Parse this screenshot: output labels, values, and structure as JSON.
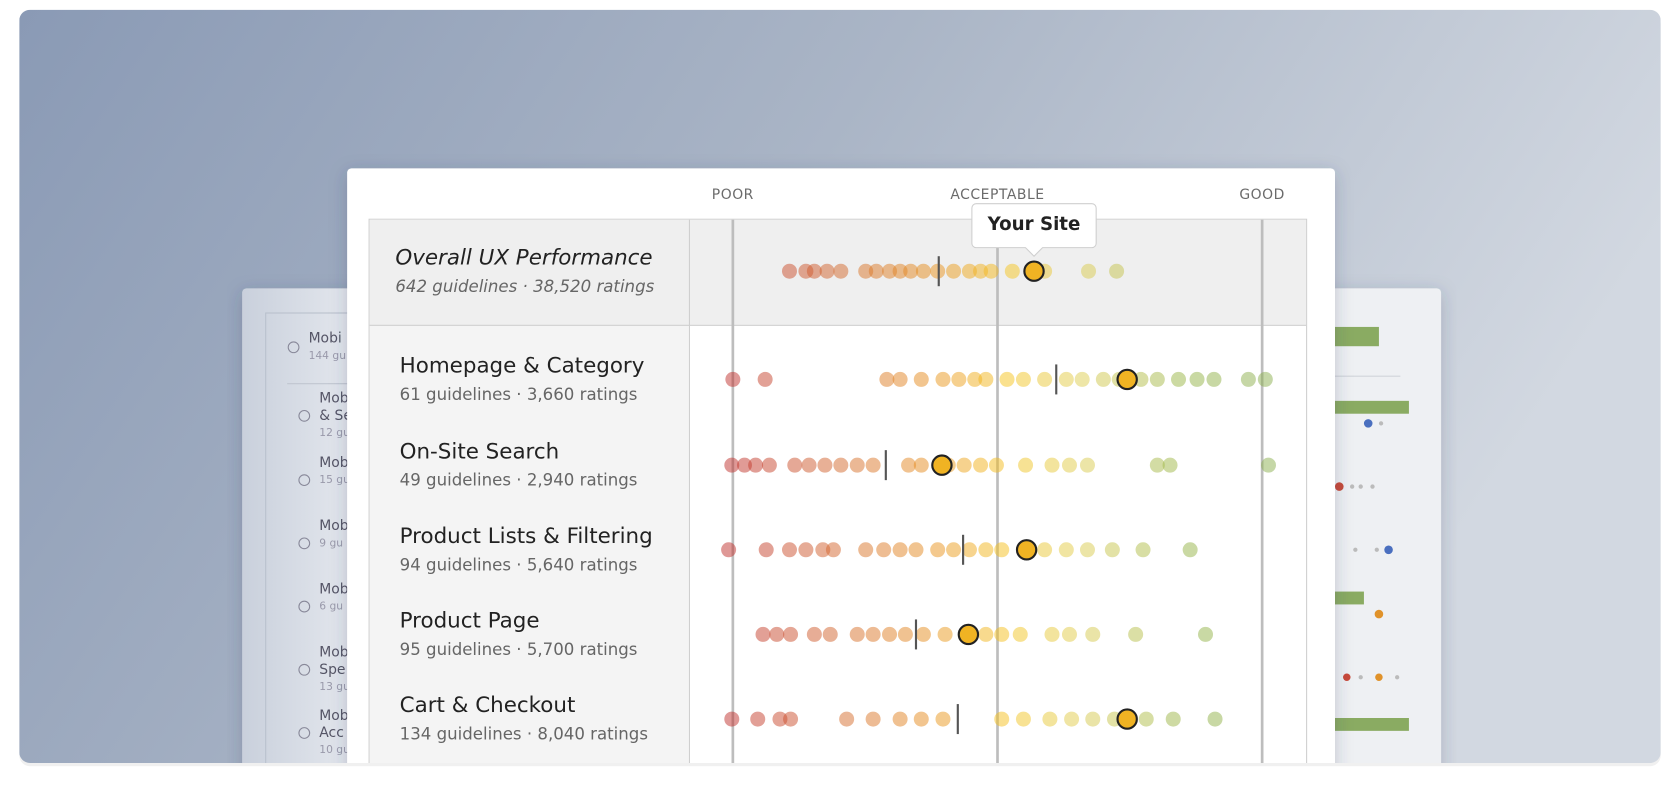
{
  "chart_data": {
    "type": "strip",
    "xlim": [
      0,
      100
    ],
    "xticks": [
      {
        "value": 0,
        "label": "POOR"
      },
      {
        "value": 50,
        "label": "ACCEPTABLE"
      },
      {
        "value": 100,
        "label": "GOOD"
      }
    ],
    "annotation": "Your Site",
    "overall": {
      "title": "Overall UX Performance",
      "subtitle": "642 guidelines · 38,520 ratings",
      "values": [
        10.7,
        13.8,
        15.4,
        17.8,
        20.4,
        25.1,
        27.1,
        29.6,
        31.6,
        33.6,
        36.0,
        38.7,
        41.7,
        44.7,
        46.8,
        48.8,
        52.8,
        58.9,
        67.2,
        72.5
      ],
      "median": 38.9,
      "your_site": 56.9
    },
    "rows": [
      {
        "title": "Homepage & Category",
        "subtitle": "61 guidelines · 3,660 ratings",
        "values": [
          0,
          6.1,
          29.1,
          31.6,
          35.6,
          39.7,
          42.7,
          45.7,
          47.8,
          51.8,
          54.9,
          58.9,
          63,
          66,
          70,
          73,
          77.1,
          80.2,
          84.2,
          87.7,
          90.9,
          97.4,
          100.6
        ],
        "median": 61.1,
        "your_site": 74.5
      },
      {
        "title": "On-Site Search",
        "subtitle": "49 guidelines · 2,940 ratings",
        "values": [
          -0.2,
          2.2,
          4.3,
          6.9,
          11.7,
          14.4,
          17.4,
          20.4,
          23.5,
          26.5,
          33.2,
          35.6,
          40.7,
          43.7,
          46.8,
          49.8,
          55.3,
          60.3,
          63.6,
          67,
          80.2,
          82.6,
          101.2
        ],
        "median": 28.9,
        "your_site": 39.5
      },
      {
        "title": "Product Lists & Filtering",
        "subtitle": "94 guidelines · 5,640 ratings",
        "values": [
          -0.8,
          6.3,
          10.7,
          13.8,
          17,
          19,
          25.1,
          28.5,
          31.6,
          34.6,
          38.7,
          41.7,
          44.7,
          47.8,
          50.8,
          58.9,
          63,
          67,
          71.7,
          77.5,
          86.4
        ],
        "median": 43.5,
        "your_site": 55.5
      },
      {
        "title": "Product Page",
        "subtitle": "95 guidelines · 5,700 ratings",
        "values": [
          5.7,
          8.3,
          10.9,
          15.4,
          18.4,
          23.5,
          26.5,
          29.6,
          32.6,
          36,
          40.1,
          47.8,
          50.8,
          54.3,
          60.3,
          63.6,
          68,
          76.1,
          89.3
        ],
        "median": 34.6,
        "your_site": 44.5
      },
      {
        "title": "Cart & Checkout",
        "subtitle": "134 guidelines · 8,040 ratings",
        "values": [
          -0.2,
          4.7,
          8.9,
          10.9,
          21.5,
          26.5,
          31.6,
          35.6,
          39.7,
          50.8,
          54.9,
          59.9,
          64,
          68,
          72.1,
          78.1,
          83.2,
          91.1
        ],
        "median": 42.5,
        "your_site": 74.5
      }
    ]
  },
  "background_card": {
    "items": [
      {
        "title": "Mobi",
        "subtitle": "144 gu"
      },
      {
        "title": "Mob",
        "title2": "& Se",
        "subtitle": "12 gu"
      },
      {
        "title": "Mob",
        "subtitle": "15 gu"
      },
      {
        "title": "Mob",
        "subtitle": "9 gu"
      },
      {
        "title": "Mob",
        "subtitle": "6 gu"
      },
      {
        "title": "Mob",
        "title2": "Spe",
        "subtitle": "13 gu"
      },
      {
        "title": "Mob",
        "title2": "Acc",
        "subtitle": "10 gu"
      }
    ]
  }
}
